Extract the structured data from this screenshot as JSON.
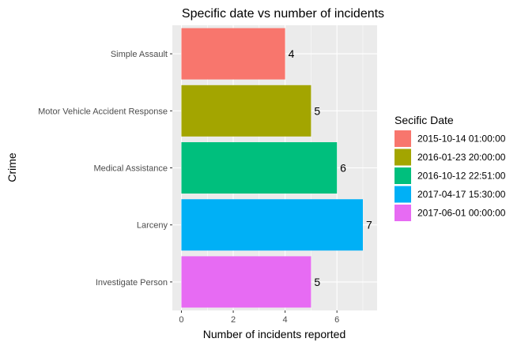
{
  "chart_data": {
    "type": "bar",
    "orientation": "horizontal",
    "title": "Specific date vs number of incidents",
    "xlabel": "Number of incidents reported",
    "ylabel": "Crime",
    "xlim": [
      -0.35,
      7.55
    ],
    "x_ticks": [
      0,
      2,
      4,
      6
    ],
    "grid": true,
    "legend_title": "Secific Date",
    "legend_position": "right",
    "categories": [
      "Simple Assault",
      "Motor Vehicle Accident Response",
      "Medical Assistance",
      "Larceny",
      "Investigate Person"
    ],
    "values": [
      4,
      5,
      6,
      7,
      5
    ],
    "fill_groups": [
      "2015-10-14 01:00:00",
      "2016-01-23 20:00:00",
      "2016-10-12 22:51:00",
      "2017-04-17 15:30:00",
      "2017-06-01 00:00:00"
    ],
    "legend": [
      {
        "label": "2015-10-14 01:00:00",
        "color": "#F8766D"
      },
      {
        "label": "2016-01-23 20:00:00",
        "color": "#A3A500"
      },
      {
        "label": "2016-10-12 22:51:00",
        "color": "#00BF7D"
      },
      {
        "label": "2017-04-17 15:30:00",
        "color": "#00B0F6"
      },
      {
        "label": "2017-06-01 00:00:00",
        "color": "#E76BF3"
      }
    ],
    "panel_background": "#EBEBEB",
    "grid_color": "#FFFFFF"
  }
}
